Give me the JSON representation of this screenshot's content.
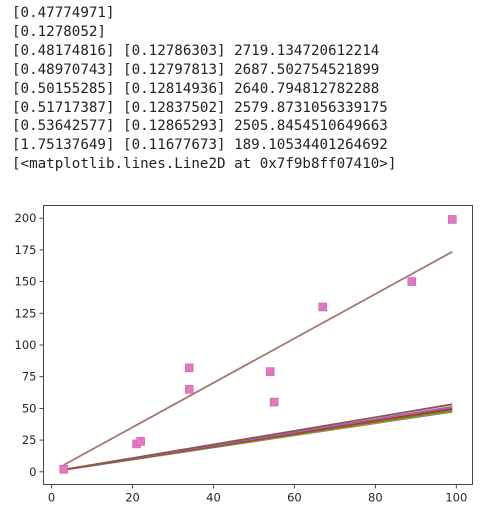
{
  "output_lines": [
    "[0.47774971]",
    "[0.1278052]",
    "[0.48174816] [0.12786303] 2719.134720612214",
    "[0.48970743] [0.12797813] 2687.502754521899",
    "[0.50155285] [0.12814936] 2640.794812782288",
    "[0.51717387] [0.12837502] 2579.8731056339175",
    "[0.53642577] [0.12865293] 2505.8454510649663",
    "[1.75137649] [0.11677673] 189.10534401264692",
    "[<matplotlib.lines.Line2D at 0x7f9b8ff07410>]"
  ],
  "chart_data": {
    "type": "scatter",
    "xlim": [
      -2,
      104
    ],
    "ylim": [
      -10,
      210
    ],
    "xticks": [
      "0",
      "20",
      "40",
      "60",
      "80",
      "100"
    ],
    "yticks": [
      "0",
      "25",
      "50",
      "75",
      "100",
      "125",
      "150",
      "175",
      "200"
    ],
    "points": {
      "x": [
        3,
        21,
        22,
        34,
        34,
        54,
        55,
        67,
        89,
        99
      ],
      "y": [
        2,
        22,
        24,
        65,
        82,
        79,
        55,
        130,
        150,
        199
      ],
      "color": "#e377c2"
    },
    "fit_lines": [
      {
        "slope": 0.47774971,
        "intercept": 0.1278052,
        "color": "#1f77b4"
      },
      {
        "slope": 0.48174816,
        "intercept": 0.12786303,
        "color": "#ff7f0e"
      },
      {
        "slope": 0.48970743,
        "intercept": 0.12797813,
        "color": "#2ca02c"
      },
      {
        "slope": 0.50155285,
        "intercept": 0.12814936,
        "color": "#d62728"
      },
      {
        "slope": 0.51717387,
        "intercept": 0.12837502,
        "color": "#9467bd"
      },
      {
        "slope": 0.53642577,
        "intercept": 0.12865293,
        "color": "#8c564b"
      },
      {
        "slope": 1.75137649,
        "intercept": 0.11677673,
        "color": "#a0786e"
      }
    ],
    "line_x_range": [
      3,
      99
    ],
    "grid": false
  }
}
